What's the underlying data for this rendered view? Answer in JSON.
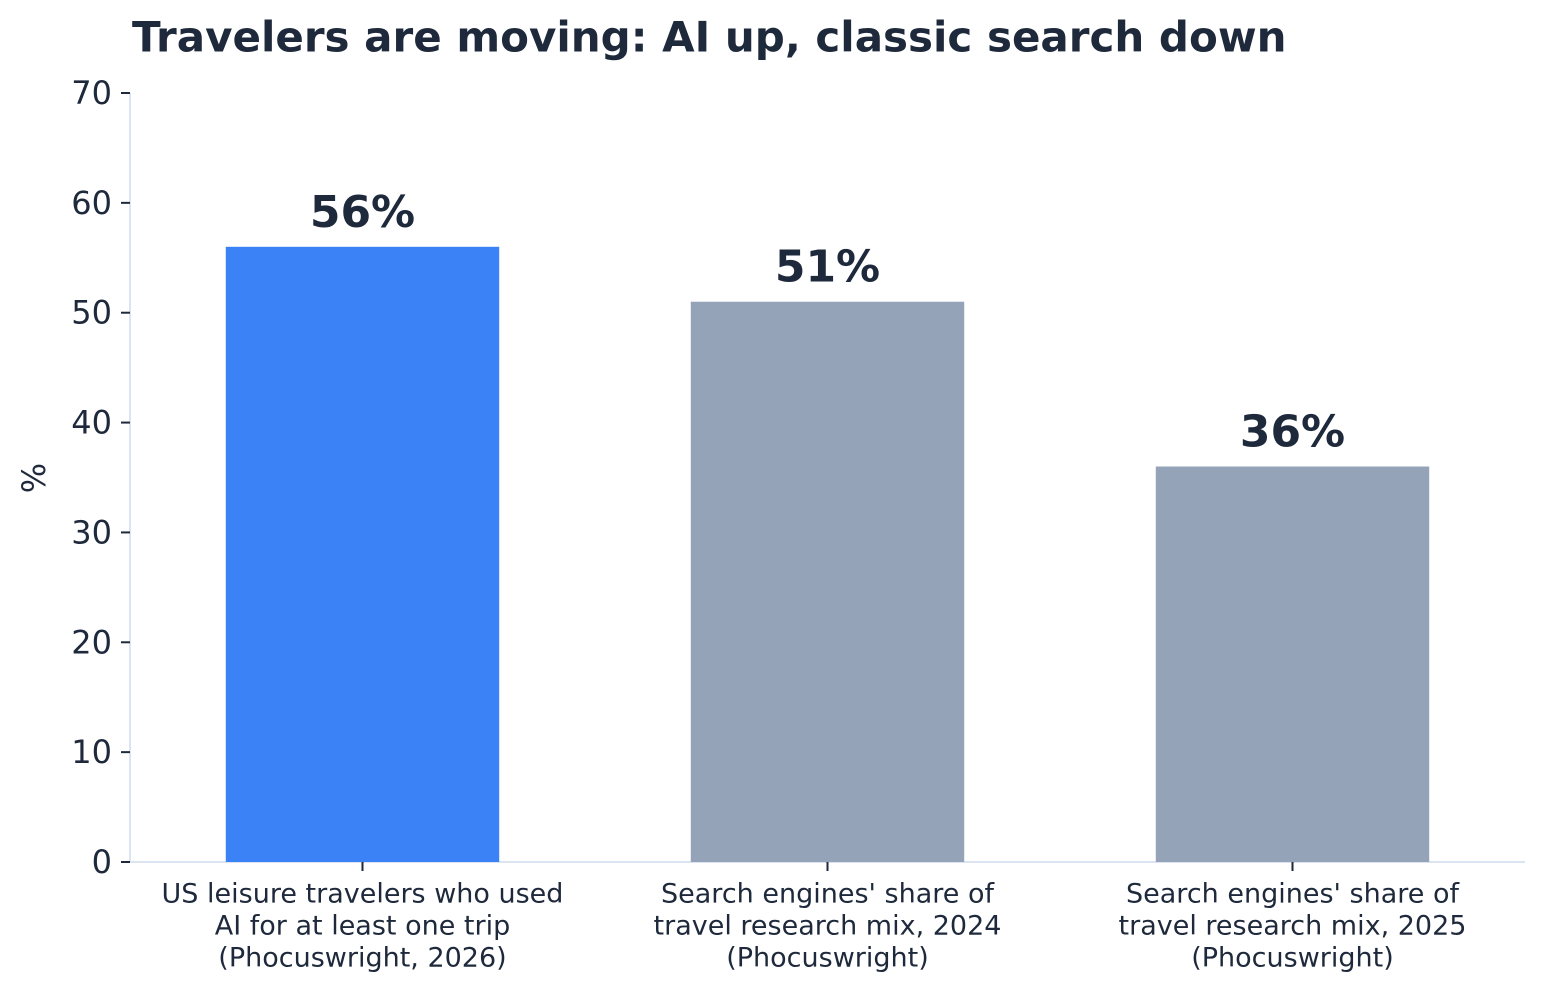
{
  "chart_data": {
    "type": "bar",
    "title": "Travelers are moving: AI up, classic search down",
    "ylabel": "%",
    "categories": [
      [
        "US leisure travelers who used",
        "AI for at least one trip",
        "(Phocuswright, 2026)"
      ],
      [
        "Search engines' share of",
        "travel research mix, 2024",
        "(Phocuswright)"
      ],
      [
        "Search engines' share of",
        "travel research mix, 2025",
        "(Phocuswright)"
      ]
    ],
    "values": [
      56,
      51,
      36
    ],
    "value_labels": [
      "56%",
      "51%",
      "36%"
    ],
    "colors": [
      "#3b82f6",
      "#94a3b8",
      "#94a3b8"
    ],
    "ylim": [
      0,
      70
    ],
    "yticks": [
      0,
      10,
      20,
      30,
      40,
      50,
      60,
      70
    ],
    "grid": false
  }
}
